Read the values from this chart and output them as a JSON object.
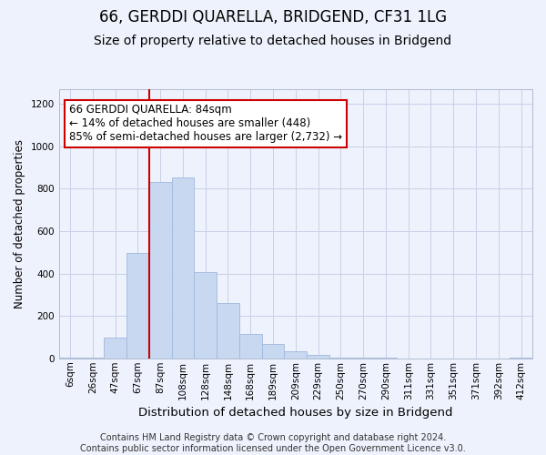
{
  "title": "66, GERDDI QUARELLA, BRIDGEND, CF31 1LG",
  "subtitle": "Size of property relative to detached houses in Bridgend",
  "xlabel": "Distribution of detached houses by size in Bridgend",
  "ylabel": "Number of detached properties",
  "bar_labels": [
    "6sqm",
    "26sqm",
    "47sqm",
    "67sqm",
    "87sqm",
    "108sqm",
    "128sqm",
    "148sqm",
    "168sqm",
    "189sqm",
    "209sqm",
    "229sqm",
    "250sqm",
    "270sqm",
    "290sqm",
    "311sqm",
    "331sqm",
    "351sqm",
    "371sqm",
    "392sqm",
    "412sqm"
  ],
  "bar_values": [
    5,
    5,
    97,
    497,
    830,
    855,
    405,
    260,
    113,
    68,
    35,
    18,
    5,
    5,
    5,
    0,
    0,
    0,
    0,
    0,
    5
  ],
  "bar_color": "#c8d8f0",
  "bar_edgecolor": "#a0b8dc",
  "vline_x_index": 4,
  "vline_color": "#cc0000",
  "annotation_title": "66 GERDDI QUARELLA: 84sqm",
  "annotation_line1": "← 14% of detached houses are smaller (448)",
  "annotation_line2": "85% of semi-detached houses are larger (2,732) →",
  "annotation_box_facecolor": "#ffffff",
  "annotation_box_edgecolor": "#cc0000",
  "ylim": [
    0,
    1270
  ],
  "yticks": [
    0,
    200,
    400,
    600,
    800,
    1000,
    1200
  ],
  "footer_line1": "Contains HM Land Registry data © Crown copyright and database right 2024.",
  "footer_line2": "Contains public sector information licensed under the Open Government Licence v3.0.",
  "background_color": "#eef2fc",
  "plot_background": "#eef2fc",
  "grid_color": "#c8d0e8",
  "title_fontsize": 12,
  "subtitle_fontsize": 10,
  "xlabel_fontsize": 9.5,
  "ylabel_fontsize": 8.5,
  "tick_fontsize": 7.5,
  "annotation_fontsize": 8.5,
  "footer_fontsize": 7
}
